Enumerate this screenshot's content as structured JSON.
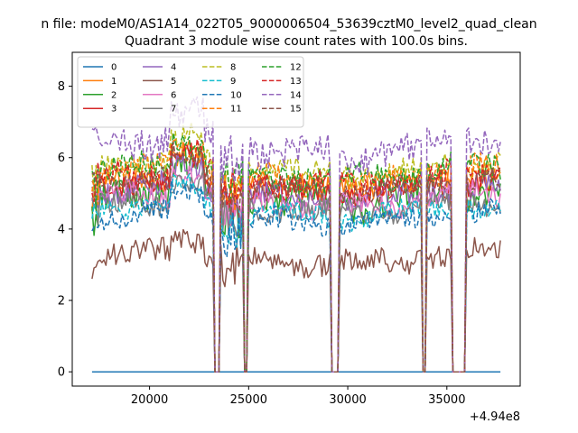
{
  "chart_data": {
    "type": "line",
    "suptitle": "n file: modeM0/AS1A14_022T05_9000006504_53639cztM0_level2_quad_clean",
    "title": "Quadrant 3 module wise count rates with 100.0s bins.",
    "xlabel": "",
    "ylabel": "",
    "x_offset_label": "+4.94e8",
    "xlim": [
      16100,
      38700
    ],
    "ylim": [
      -0.4,
      8.95
    ],
    "xticks": [
      20000,
      25000,
      30000,
      35000
    ],
    "xtick_labels": [
      "20000",
      "25000",
      "30000",
      "35000"
    ],
    "yticks": [
      0,
      2,
      4,
      6,
      8
    ],
    "ytick_labels": [
      "0",
      "2",
      "4",
      "6",
      "8"
    ],
    "x_start": 17100,
    "x_end": 37700,
    "bin_seconds": 100,
    "gaps": [
      [
        23300,
        23500
      ],
      [
        24800,
        24900
      ],
      [
        29200,
        29500
      ],
      [
        33800,
        33900
      ],
      [
        35300,
        35900
      ]
    ],
    "legend_position": "upper left",
    "series": [
      {
        "name": "0",
        "color": "#1f77b4",
        "dashed": false,
        "level": 0.0,
        "amp": 0.0
      },
      {
        "name": "1",
        "color": "#ff7f0e",
        "dashed": false,
        "level": 5.3,
        "amp": 0.35
      },
      {
        "name": "2",
        "color": "#2ca02c",
        "dashed": false,
        "level": 4.9,
        "amp": 0.45
      },
      {
        "name": "3",
        "color": "#d62728",
        "dashed": false,
        "level": 5.2,
        "amp": 0.35
      },
      {
        "name": "4",
        "color": "#9467bd",
        "dashed": false,
        "level": 5.0,
        "amp": 0.35
      },
      {
        "name": "5",
        "color": "#8c564b",
        "dashed": false,
        "level": 3.2,
        "amp": 0.35
      },
      {
        "name": "6",
        "color": "#e377c2",
        "dashed": false,
        "level": 4.8,
        "amp": 0.35
      },
      {
        "name": "7",
        "color": "#7f7f7f",
        "dashed": false,
        "level": 4.6,
        "amp": 0.3
      },
      {
        "name": "8",
        "color": "#bcbd22",
        "dashed": true,
        "level": 5.7,
        "amp": 0.35
      },
      {
        "name": "9",
        "color": "#17becf",
        "dashed": true,
        "level": 4.5,
        "amp": 0.3
      },
      {
        "name": "10",
        "color": "#1f77b4",
        "dashed": true,
        "level": 4.3,
        "amp": 0.3
      },
      {
        "name": "11",
        "color": "#ff7f0e",
        "dashed": true,
        "level": 5.5,
        "amp": 0.35
      },
      {
        "name": "12",
        "color": "#2ca02c",
        "dashed": true,
        "level": 5.6,
        "amp": 0.35
      },
      {
        "name": "13",
        "color": "#d62728",
        "dashed": true,
        "level": 5.4,
        "amp": 0.35
      },
      {
        "name": "14",
        "color": "#9467bd",
        "dashed": true,
        "level": 6.3,
        "amp": 0.45
      },
      {
        "name": "15",
        "color": "#8c564b",
        "dashed": true,
        "level": 5.2,
        "amp": 0.35
      }
    ]
  }
}
